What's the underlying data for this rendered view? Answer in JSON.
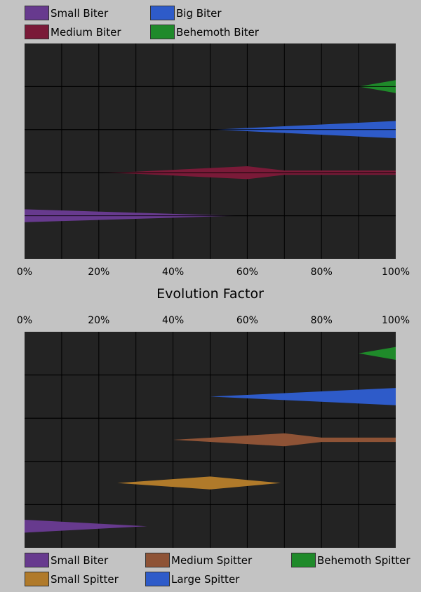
{
  "chart_data": [
    {
      "type": "area",
      "title": "",
      "xlabel": "Evolution Factor",
      "x_axis_position": "bottom",
      "xlim": [
        0,
        1
      ],
      "xticks": [
        {
          "value": 0,
          "label": "0%"
        },
        {
          "value": 0.2,
          "label": "20%"
        },
        {
          "value": 0.4,
          "label": "40%"
        },
        {
          "value": 0.6,
          "label": "60%"
        },
        {
          "value": 0.8,
          "label": "80%"
        },
        {
          "value": 1.0,
          "label": "100%"
        }
      ],
      "grid": true,
      "legend_position": "top",
      "series": [
        {
          "name": "Small Biter",
          "color": "#673a8e",
          "row": 1,
          "points": [
            [
              0,
              0.3
            ],
            [
              0.57,
              0
            ]
          ]
        },
        {
          "name": "Medium Biter",
          "color": "#7a1a38",
          "row": 2,
          "points": [
            [
              0.21,
              0
            ],
            [
              0.3,
              0.05
            ],
            [
              0.6,
              0.3
            ],
            [
              0.7,
              0.1
            ],
            [
              1.0,
              0.1
            ]
          ]
        },
        {
          "name": "Big Biter",
          "color": "#2e5bc9",
          "row": 3,
          "points": [
            [
              0.51,
              0
            ],
            [
              1.0,
              0.4
            ]
          ]
        },
        {
          "name": "Behemoth Biter",
          "color": "#1f8a2a",
          "row": 4,
          "points": [
            [
              0.9,
              0
            ],
            [
              1.0,
              0.3
            ]
          ]
        }
      ]
    },
    {
      "type": "area",
      "title": "",
      "xlabel": "",
      "x_axis_position": "top",
      "xlim": [
        0,
        1
      ],
      "xticks": [
        {
          "value": 0,
          "label": "0%"
        },
        {
          "value": 0.2,
          "label": "20%"
        },
        {
          "value": 0.4,
          "label": "40%"
        },
        {
          "value": 0.6,
          "label": "60%"
        },
        {
          "value": 0.8,
          "label": "80%"
        },
        {
          "value": 1.0,
          "label": "100%"
        }
      ],
      "grid": true,
      "legend_position": "bottom",
      "series": [
        {
          "name": "Small Biter",
          "color": "#673a8e",
          "row": 1,
          "points": [
            [
              0,
              0.3
            ],
            [
              0.33,
              0
            ]
          ]
        },
        {
          "name": "Small Spitter",
          "color": "#b07a2a",
          "row": 2,
          "points": [
            [
              0.25,
              0
            ],
            [
              0.5,
              0.3
            ],
            [
              0.69,
              0
            ]
          ]
        },
        {
          "name": "Medium Spitter",
          "color": "#8e5336",
          "row": 3,
          "points": [
            [
              0.4,
              0
            ],
            [
              0.7,
              0.3
            ],
            [
              0.8,
              0.1
            ],
            [
              1.0,
              0.1
            ]
          ]
        },
        {
          "name": "Large Spitter",
          "color": "#2e5bc9",
          "row": 4,
          "points": [
            [
              0.5,
              0
            ],
            [
              1.0,
              0.4
            ]
          ]
        },
        {
          "name": "Behemoth Spitter",
          "color": "#1f8a2a",
          "row": 5,
          "points": [
            [
              0.9,
              0
            ],
            [
              1.0,
              0.3
            ]
          ]
        }
      ]
    }
  ]
}
